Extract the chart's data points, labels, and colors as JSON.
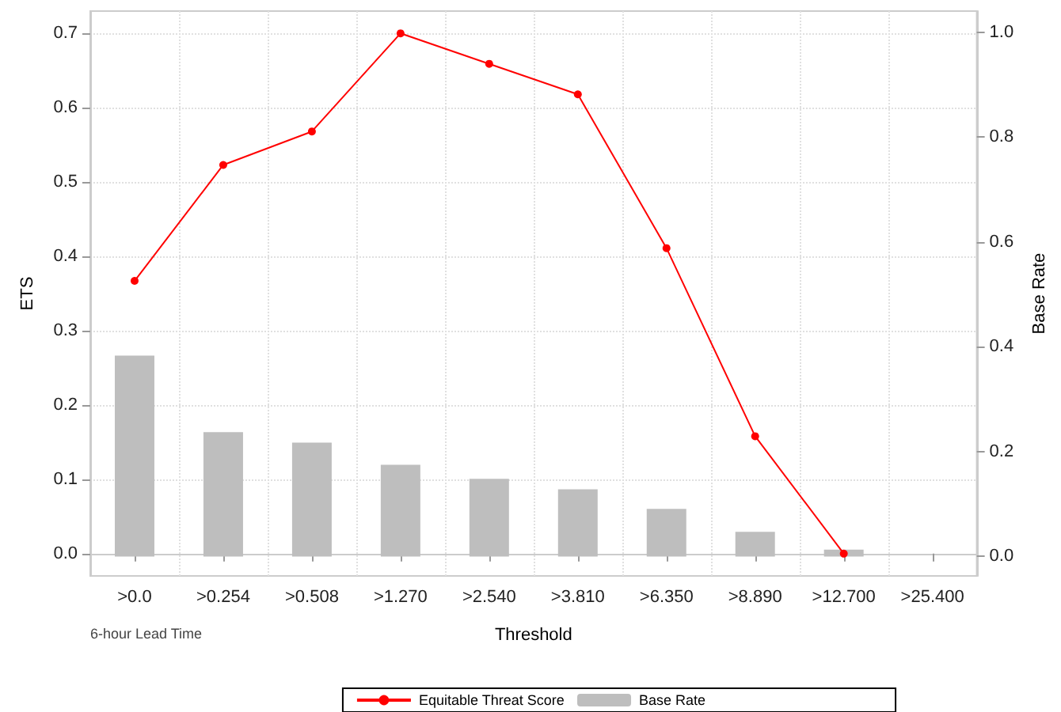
{
  "chart_data": {
    "type": "line",
    "xlabel": "Threshold",
    "ylabel": "ETS",
    "y2label": "Base Rate",
    "categories": [
      ">0.0",
      ">0.254",
      ">0.508",
      ">1.270",
      ">2.540",
      ">3.810",
      ">6.350",
      ">8.890",
      ">12.700",
      ">25.400"
    ],
    "series": [
      {
        "name": "Equitable Threat Score",
        "color": "#ff0000",
        "values": [
          0.367,
          0.523,
          0.568,
          0.7,
          0.659,
          0.618,
          0.411,
          0.158,
          0,
          null
        ]
      },
      {
        "name": "Base Rate",
        "type": "bar",
        "axis": "y2",
        "color": "#bebebe",
        "values": [
          0.383,
          0.237,
          0.217,
          0.175,
          0.148,
          0.128,
          0.091,
          0.047,
          0.013,
          null
        ]
      }
    ],
    "ylim": [
      -0.03,
      0.73
    ],
    "yticks": [
      {
        "value": 0,
        "label": "0.0"
      },
      0.1,
      0.2,
      0.3,
      0.4,
      0.5,
      0.6,
      0.7
    ],
    "y2lim": [
      -0.037,
      1.04
    ],
    "y2ticks": [
      {
        "value": 0,
        "label": "0.0"
      },
      0.2,
      0.4,
      0.6,
      0.8,
      {
        "value": 1,
        "label": "1.0"
      }
    ],
    "annotations": [
      "6-hour Lead Time"
    ],
    "grid": true,
    "legend": "bottom",
    "marker": "circle",
    "line_style": "solid"
  }
}
